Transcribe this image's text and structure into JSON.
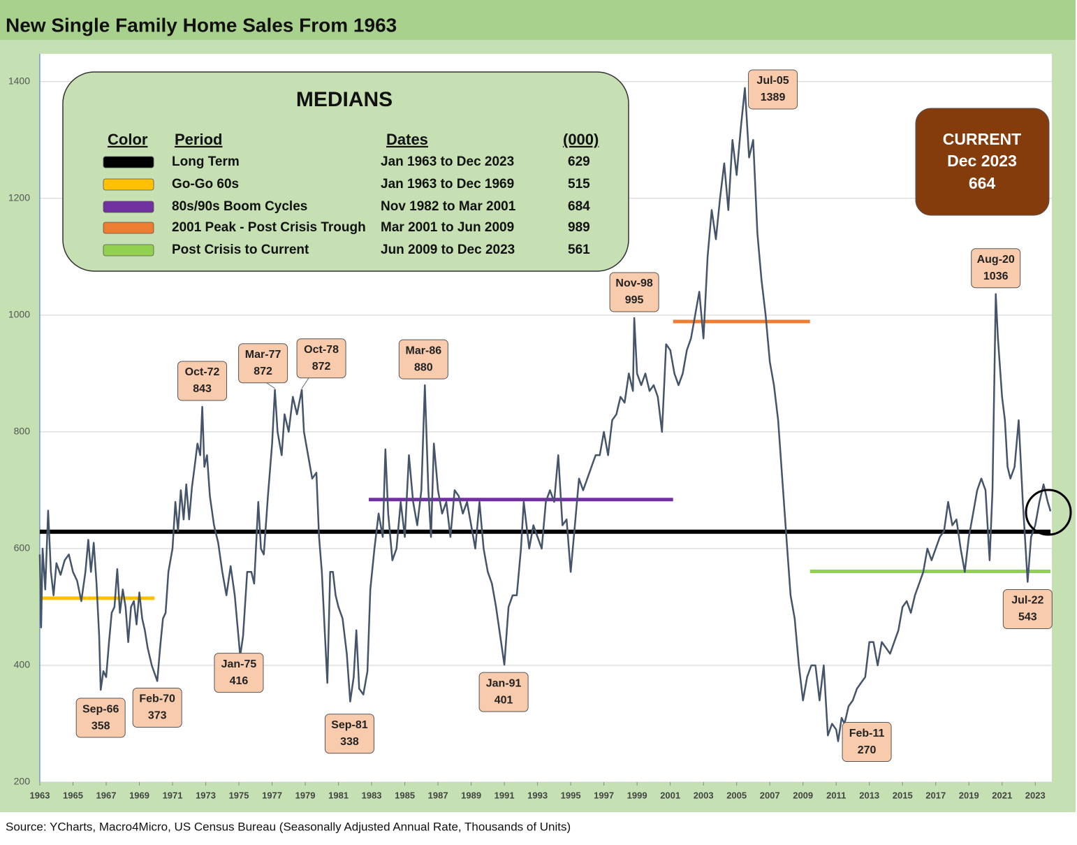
{
  "chart_data": {
    "type": "line",
    "title": "New Single Family Home Sales From 1963",
    "source": "Source: YCharts, Macro4Micro, US Census Bureau (Seasonally Adjusted Annual Rate, Thousands of Units)",
    "x": [
      1963.0,
      1963.08,
      1963.17,
      1963.33,
      1963.5,
      1963.67,
      1963.83,
      1964.0,
      1964.25,
      1964.5,
      1964.75,
      1965.0,
      1965.25,
      1965.5,
      1965.75,
      1965.92,
      1966.08,
      1966.25,
      1966.42,
      1966.58,
      1966.67,
      1966.83,
      1967.0,
      1967.17,
      1967.33,
      1967.5,
      1967.67,
      1967.83,
      1968.0,
      1968.17,
      1968.33,
      1968.5,
      1968.67,
      1968.83,
      1969.0,
      1969.17,
      1969.33,
      1969.5,
      1969.75,
      1970.08,
      1970.25,
      1970.42,
      1970.58,
      1970.75,
      1971.0,
      1971.17,
      1971.33,
      1971.5,
      1971.67,
      1971.83,
      1972.0,
      1972.17,
      1972.33,
      1972.5,
      1972.67,
      1972.79,
      1972.92,
      1973.08,
      1973.25,
      1973.5,
      1973.75,
      1974.0,
      1974.25,
      1974.5,
      1974.75,
      1975.08,
      1975.25,
      1975.5,
      1975.75,
      1975.92,
      1976.17,
      1976.33,
      1976.5,
      1976.75,
      1977.0,
      1977.17,
      1977.33,
      1977.58,
      1977.75,
      1978.0,
      1978.25,
      1978.5,
      1978.79,
      1978.92,
      1979.17,
      1979.42,
      1979.67,
      1979.83,
      1980.0,
      1980.17,
      1980.33,
      1980.5,
      1980.67,
      1980.83,
      1981.0,
      1981.25,
      1981.5,
      1981.71,
      1981.92,
      1982.08,
      1982.25,
      1982.5,
      1982.75,
      1982.92,
      1983.17,
      1983.42,
      1983.67,
      1983.83,
      1984.0,
      1984.25,
      1984.5,
      1984.75,
      1985.0,
      1985.25,
      1985.5,
      1985.75,
      1986.0,
      1986.21,
      1986.42,
      1986.58,
      1986.75,
      1987.0,
      1987.25,
      1987.5,
      1987.75,
      1988.0,
      1988.25,
      1988.5,
      1988.75,
      1989.0,
      1989.25,
      1989.5,
      1989.75,
      1990.0,
      1990.25,
      1990.5,
      1991.0,
      1991.25,
      1991.5,
      1991.75,
      1992.0,
      1992.17,
      1992.5,
      1992.75,
      1993.0,
      1993.25,
      1993.5,
      1993.75,
      1994.0,
      1994.25,
      1994.5,
      1994.75,
      1995.0,
      1995.25,
      1995.5,
      1995.75,
      1996.0,
      1996.25,
      1996.5,
      1996.75,
      1997.0,
      1997.25,
      1997.5,
      1997.75,
      1998.0,
      1998.25,
      1998.5,
      1998.75,
      1998.83,
      1999.0,
      1999.25,
      1999.5,
      1999.75,
      2000.0,
      2000.25,
      2000.5,
      2000.75,
      2001.0,
      2001.25,
      2001.5,
      2001.75,
      2002.0,
      2002.25,
      2002.5,
      2002.75,
      2003.0,
      2003.25,
      2003.5,
      2003.75,
      2004.0,
      2004.25,
      2004.5,
      2004.75,
      2005.0,
      2005.25,
      2005.5,
      2005.75,
      2006.0,
      2006.25,
      2006.5,
      2006.75,
      2007.0,
      2007.25,
      2007.5,
      2007.75,
      2008.0,
      2008.25,
      2008.5,
      2008.75,
      2009.0,
      2009.25,
      2009.5,
      2009.75,
      2010.0,
      2010.25,
      2010.5,
      2010.75,
      2011.0,
      2011.12,
      2011.33,
      2011.5,
      2011.75,
      2012.0,
      2012.25,
      2012.5,
      2012.75,
      2013.0,
      2013.25,
      2013.5,
      2013.75,
      2014.0,
      2014.25,
      2014.5,
      2014.75,
      2015.0,
      2015.25,
      2015.5,
      2015.75,
      2016.0,
      2016.25,
      2016.5,
      2016.75,
      2017.0,
      2017.25,
      2017.5,
      2017.75,
      2018.0,
      2018.25,
      2018.5,
      2018.75,
      2019.0,
      2019.25,
      2019.5,
      2019.75,
      2020.0,
      2020.25,
      2020.42,
      2020.62,
      2020.75,
      2021.0,
      2021.17,
      2021.33,
      2021.5,
      2021.75,
      2022.0,
      2022.25,
      2022.42,
      2022.54,
      2022.75,
      2023.0,
      2023.25,
      2023.5,
      2023.75,
      2023.92
    ],
    "series": [
      {
        "color": "#44546a",
        "values": [
          590,
          465,
          600,
          530,
          665,
          560,
          520,
          575,
          555,
          580,
          590,
          560,
          545,
          510,
          560,
          615,
          560,
          610,
          540,
          450,
          358,
          390,
          380,
          440,
          490,
          500,
          565,
          490,
          530,
          500,
          440,
          500,
          510,
          470,
          525,
          480,
          460,
          430,
          400,
          373,
          430,
          480,
          490,
          560,
          600,
          680,
          630,
          700,
          650,
          710,
          650,
          705,
          740,
          780,
          760,
          843,
          740,
          760,
          690,
          640,
          610,
          560,
          520,
          570,
          520,
          416,
          450,
          560,
          560,
          540,
          680,
          600,
          590,
          690,
          780,
          872,
          800,
          760,
          830,
          800,
          860,
          830,
          872,
          800,
          760,
          720,
          730,
          620,
          560,
          460,
          370,
          560,
          560,
          520,
          500,
          480,
          420,
          338,
          380,
          460,
          360,
          350,
          390,
          530,
          600,
          660,
          620,
          770,
          660,
          580,
          600,
          680,
          620,
          760,
          680,
          640,
          700,
          880,
          700,
          620,
          780,
          700,
          660,
          680,
          620,
          700,
          690,
          660,
          680,
          640,
          600,
          680,
          600,
          560,
          540,
          500,
          401,
          500,
          520,
          520,
          600,
          680,
          600,
          640,
          620,
          600,
          680,
          700,
          680,
          760,
          640,
          650,
          560,
          640,
          720,
          700,
          720,
          740,
          760,
          760,
          800,
          760,
          820,
          830,
          860,
          850,
          900,
          870,
          995,
          900,
          880,
          900,
          870,
          880,
          860,
          800,
          950,
          940,
          900,
          880,
          900,
          940,
          960,
          1000,
          1040,
          960,
          1100,
          1180,
          1130,
          1200,
          1260,
          1180,
          1300,
          1240,
          1320,
          1389,
          1270,
          1300,
          1140,
          1060,
          1000,
          920,
          880,
          820,
          720,
          620,
          520,
          480,
          400,
          340,
          380,
          400,
          400,
          340,
          400,
          280,
          300,
          290,
          270,
          310,
          300,
          330,
          340,
          360,
          370,
          380,
          440,
          440,
          400,
          440,
          430,
          420,
          440,
          460,
          500,
          510,
          490,
          520,
          540,
          560,
          600,
          580,
          600,
          620,
          630,
          680,
          640,
          650,
          600,
          560,
          620,
          660,
          700,
          720,
          700,
          580,
          700,
          1036,
          960,
          860,
          820,
          740,
          720,
          740,
          820,
          680,
          600,
          543,
          620,
          640,
          680,
          710,
          680,
          664
        ]
      }
    ],
    "xlim": [
      1963,
      2024
    ],
    "xticks": [
      1963,
      1965,
      1967,
      1969,
      1971,
      1973,
      1975,
      1977,
      1979,
      1981,
      1983,
      1985,
      1987,
      1989,
      1991,
      1993,
      1995,
      1997,
      1999,
      2001,
      2003,
      2005,
      2007,
      2009,
      2011,
      2013,
      2015,
      2017,
      2019,
      2021,
      2023
    ],
    "ylim": [
      200,
      1450
    ],
    "yticks": [
      200,
      400,
      600,
      800,
      1000,
      1200,
      1400
    ],
    "grid": true,
    "annotations": [
      {
        "label": "Sep-66",
        "x": 1966.67,
        "value": 358
      },
      {
        "label": "Feb-70",
        "x": 1970.08,
        "value": 373
      },
      {
        "label": "Oct-72",
        "x": 1972.79,
        "value": 843
      },
      {
        "label": "Jan-75",
        "x": 1975.08,
        "value": 416
      },
      {
        "label": "Mar-77",
        "x": 1977.17,
        "value": 872
      },
      {
        "label": "Oct-78",
        "x": 1978.79,
        "value": 872
      },
      {
        "label": "Sep-81",
        "x": 1981.71,
        "value": 338
      },
      {
        "label": "Mar-86",
        "x": 1986.21,
        "value": 880
      },
      {
        "label": "Jan-91",
        "x": 1991.0,
        "value": 401
      },
      {
        "label": "Nov-98",
        "x": 1998.83,
        "value": 995
      },
      {
        "label": "Jul-05",
        "x": 2005.5,
        "value": 1389
      },
      {
        "label": "Feb-11",
        "x": 2011.12,
        "value": 270
      },
      {
        "label": "Aug-20",
        "x": 2020.62,
        "value": 1036
      },
      {
        "label": "Jul-22",
        "x": 2022.54,
        "value": 543
      }
    ],
    "medians": {
      "title": "MEDIANS",
      "headers": [
        "Color",
        "Period",
        "Dates",
        "(000)"
      ],
      "rows": [
        {
          "color": "#000000",
          "period": "Long Term",
          "dates": "Jan 1963 to Dec 2023",
          "value": 629,
          "x_start": 1963,
          "x_end": 2023.92
        },
        {
          "color": "#ffc000",
          "period": "Go-Go 60s",
          "dates": "Jan 1963 to Dec 1969",
          "value": 515,
          "x_start": 1963,
          "x_end": 1969.92
        },
        {
          "color": "#7030a0",
          "period": "80s/90s Boom Cycles",
          "dates": "Nov 1982 to Mar 2001",
          "value": 684,
          "x_start": 1982.83,
          "x_end": 2001.17
        },
        {
          "color": "#ed7d31",
          "period": "2001 Peak - Post Crisis Trough",
          "dates": "Mar 2001 to Jun 2009",
          "value": 989,
          "x_start": 2001.17,
          "x_end": 2009.42
        },
        {
          "color": "#92d050",
          "period": "Post Crisis to Current",
          "dates": "Jun 2009 to Dec 2023",
          "value": 561,
          "x_start": 2009.42,
          "x_end": 2023.92
        }
      ]
    },
    "current": {
      "label": "CURRENT",
      "date": "Dec 2023",
      "value": 664
    }
  }
}
